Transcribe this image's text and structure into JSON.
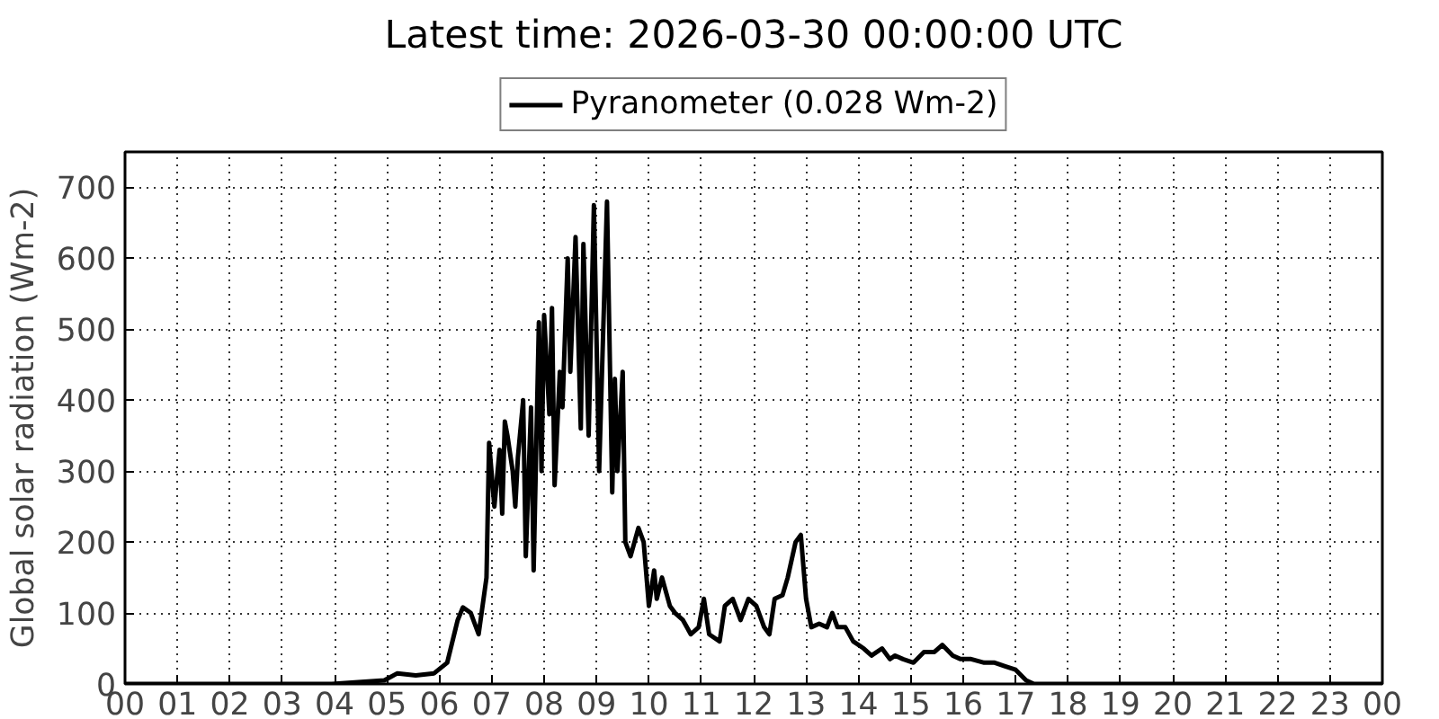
{
  "chart_data": {
    "type": "line",
    "title": "Latest time: 2026-03-30 00:00:00 UTC",
    "ylabel": "Global solar radiation (Wm-2)",
    "x": [
      0,
      3.95,
      4.95,
      5.2,
      5.55,
      5.9,
      6.15,
      6.35,
      6.45,
      6.6,
      6.75,
      6.9,
      6.95,
      7.05,
      7.15,
      7.2,
      7.25,
      7.3,
      7.4,
      7.45,
      7.5,
      7.6,
      7.65,
      7.75,
      7.8,
      7.9,
      7.95,
      8.0,
      8.1,
      8.15,
      8.2,
      8.3,
      8.35,
      8.45,
      8.5,
      8.6,
      8.7,
      8.75,
      8.85,
      8.95,
      9.05,
      9.2,
      9.3,
      9.35,
      9.4,
      9.5,
      9.55,
      9.65,
      9.8,
      9.9,
      10.0,
      10.1,
      10.15,
      10.25,
      10.4,
      10.5,
      10.65,
      10.8,
      10.95,
      11.05,
      11.15,
      11.35,
      11.45,
      11.6,
      11.75,
      11.9,
      12.05,
      12.2,
      12.3,
      12.4,
      12.55,
      12.65,
      12.8,
      12.9,
      13.0,
      13.1,
      13.25,
      13.4,
      13.5,
      13.6,
      13.75,
      13.9,
      14.1,
      14.25,
      14.45,
      14.6,
      14.7,
      14.85,
      15.05,
      15.25,
      15.45,
      15.6,
      15.8,
      15.95,
      16.15,
      16.4,
      16.6,
      16.8,
      17.0,
      17.2,
      17.35,
      24
    ],
    "series": [
      {
        "name": "Pyranometer (0.028 Wm-2)",
        "color": "#000000",
        "values": [
          0,
          0,
          5,
          15,
          12,
          15,
          30,
          90,
          108,
          100,
          70,
          150,
          340,
          250,
          330,
          240,
          370,
          350,
          300,
          250,
          320,
          400,
          180,
          390,
          160,
          510,
          300,
          520,
          380,
          530,
          280,
          440,
          390,
          600,
          440,
          630,
          360,
          620,
          350,
          675,
          300,
          680,
          270,
          430,
          300,
          440,
          200,
          180,
          220,
          200,
          110,
          160,
          120,
          150,
          110,
          100,
          90,
          70,
          80,
          120,
          70,
          60,
          110,
          120,
          90,
          120,
          110,
          80,
          70,
          120,
          125,
          150,
          200,
          210,
          120,
          80,
          85,
          80,
          100,
          80,
          80,
          60,
          50,
          40,
          50,
          35,
          40,
          35,
          30,
          45,
          45,
          55,
          40,
          35,
          35,
          30,
          30,
          25,
          20,
          5,
          0,
          0
        ]
      }
    ],
    "xlim": [
      0,
      24
    ],
    "xticks": [
      {
        "value": 0,
        "label": "00"
      },
      {
        "value": 1,
        "label": "01"
      },
      {
        "value": 2,
        "label": "02"
      },
      {
        "value": 3,
        "label": "03"
      },
      {
        "value": 4,
        "label": "04"
      },
      {
        "value": 5,
        "label": "05"
      },
      {
        "value": 6,
        "label": "06"
      },
      {
        "value": 7,
        "label": "07"
      },
      {
        "value": 8,
        "label": "08"
      },
      {
        "value": 9,
        "label": "09"
      },
      {
        "value": 10,
        "label": "10"
      },
      {
        "value": 11,
        "label": "11"
      },
      {
        "value": 12,
        "label": "12"
      },
      {
        "value": 13,
        "label": "13"
      },
      {
        "value": 14,
        "label": "14"
      },
      {
        "value": 15,
        "label": "15"
      },
      {
        "value": 16,
        "label": "16"
      },
      {
        "value": 17,
        "label": "17"
      },
      {
        "value": 18,
        "label": "18"
      },
      {
        "value": 19,
        "label": "19"
      },
      {
        "value": 20,
        "label": "20"
      },
      {
        "value": 21,
        "label": "21"
      },
      {
        "value": 22,
        "label": "22"
      },
      {
        "value": 23,
        "label": "23"
      },
      {
        "value": 24,
        "label": "00"
      }
    ],
    "ylim": [
      0,
      750
    ],
    "yticks": [
      0,
      100,
      200,
      300,
      400,
      500,
      600,
      700
    ],
    "grid": true,
    "legend": "top",
    "marker": "none",
    "line_style": "solid"
  }
}
